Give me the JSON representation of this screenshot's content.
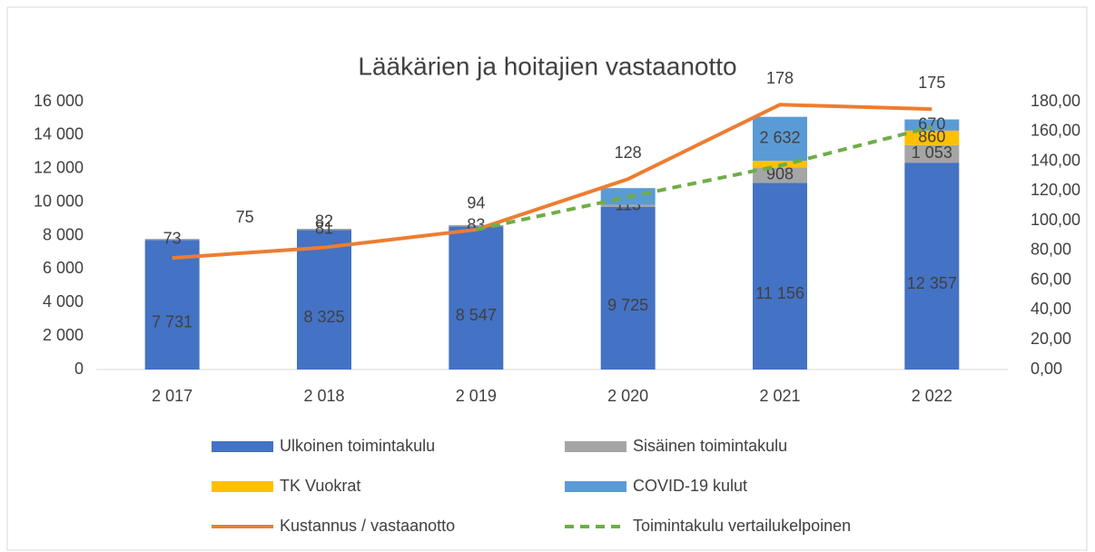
{
  "chart_data": {
    "type": "bar",
    "title": "Lääkärien ja hoitajien vastaanotto",
    "categories": [
      "2 017",
      "2 018",
      "2 019",
      "2 020",
      "2 021",
      "2 022"
    ],
    "series": [
      {
        "name": "Ulkoinen toimintakulu",
        "color": "#4472c4",
        "values": [
          7731,
          8325,
          8547,
          9725,
          11156,
          12357
        ],
        "value_labels": [
          "7 731",
          "8 325",
          "8 547",
          "9 725",
          "11 156",
          "12 357"
        ]
      },
      {
        "name": "Sisäinen toimintakulu",
        "color": "#a5a5a5",
        "values": [
          73,
          81,
          83,
          113,
          908,
          1053
        ],
        "value_labels": [
          "73",
          "81",
          "83",
          "113",
          "908",
          "1 053"
        ]
      },
      {
        "name": "TK Vuokrat",
        "color": "#ffc000",
        "values": [
          0,
          0,
          0,
          0,
          400,
          860
        ],
        "value_labels": [
          null,
          null,
          null,
          null,
          null,
          "860"
        ]
      },
      {
        "name": "COVID-19 kulut",
        "color": "#5b9bd5",
        "values": [
          0,
          0,
          0,
          1000,
          2632,
          670
        ],
        "value_labels": [
          null,
          null,
          null,
          null,
          "2 632",
          "670"
        ]
      },
      {
        "name": "Kustannus / vastaanotto",
        "type": "line",
        "axis": "y2",
        "color": "#ed7d31",
        "values": [
          75,
          82,
          94,
          128,
          178,
          175
        ]
      },
      {
        "name": "Toimintakulu vertailukelpoinen",
        "type": "line",
        "axis": "y2",
        "dashed": true,
        "color": "#70ad47",
        "values": [
          null,
          null,
          94,
          116,
          137,
          163
        ]
      }
    ],
    "ylim": [
      0,
      16000
    ],
    "yticks": [
      0,
      {
        "value": 2000,
        "label": "2 000"
      },
      {
        "value": 4000,
        "label": "4 000"
      },
      {
        "value": 6000,
        "label": "6 000"
      },
      {
        "value": 8000,
        "label": "8 000"
      },
      {
        "value": 10000,
        "label": "10 000"
      },
      {
        "value": 12000,
        "label": "12 000"
      },
      {
        "value": 14000,
        "label": "14 000"
      },
      {
        "value": 16000,
        "label": "16 000"
      }
    ],
    "y2lim": [
      0,
      180
    ],
    "y2ticks": [
      {
        "value": 0,
        "label": "0,00"
      },
      {
        "value": 20,
        "label": "20,00"
      },
      {
        "value": 40,
        "label": "40,00"
      },
      {
        "value": 60,
        "label": "60,00"
      },
      {
        "value": 80,
        "label": "80,00"
      },
      {
        "value": 100,
        "label": "100,00"
      },
      {
        "value": 120,
        "label": "120,00"
      },
      {
        "value": 140,
        "label": "140,00"
      },
      {
        "value": 160,
        "label": "160,00"
      },
      {
        "value": 180,
        "label": "180,00"
      }
    ],
    "grid": false
  }
}
